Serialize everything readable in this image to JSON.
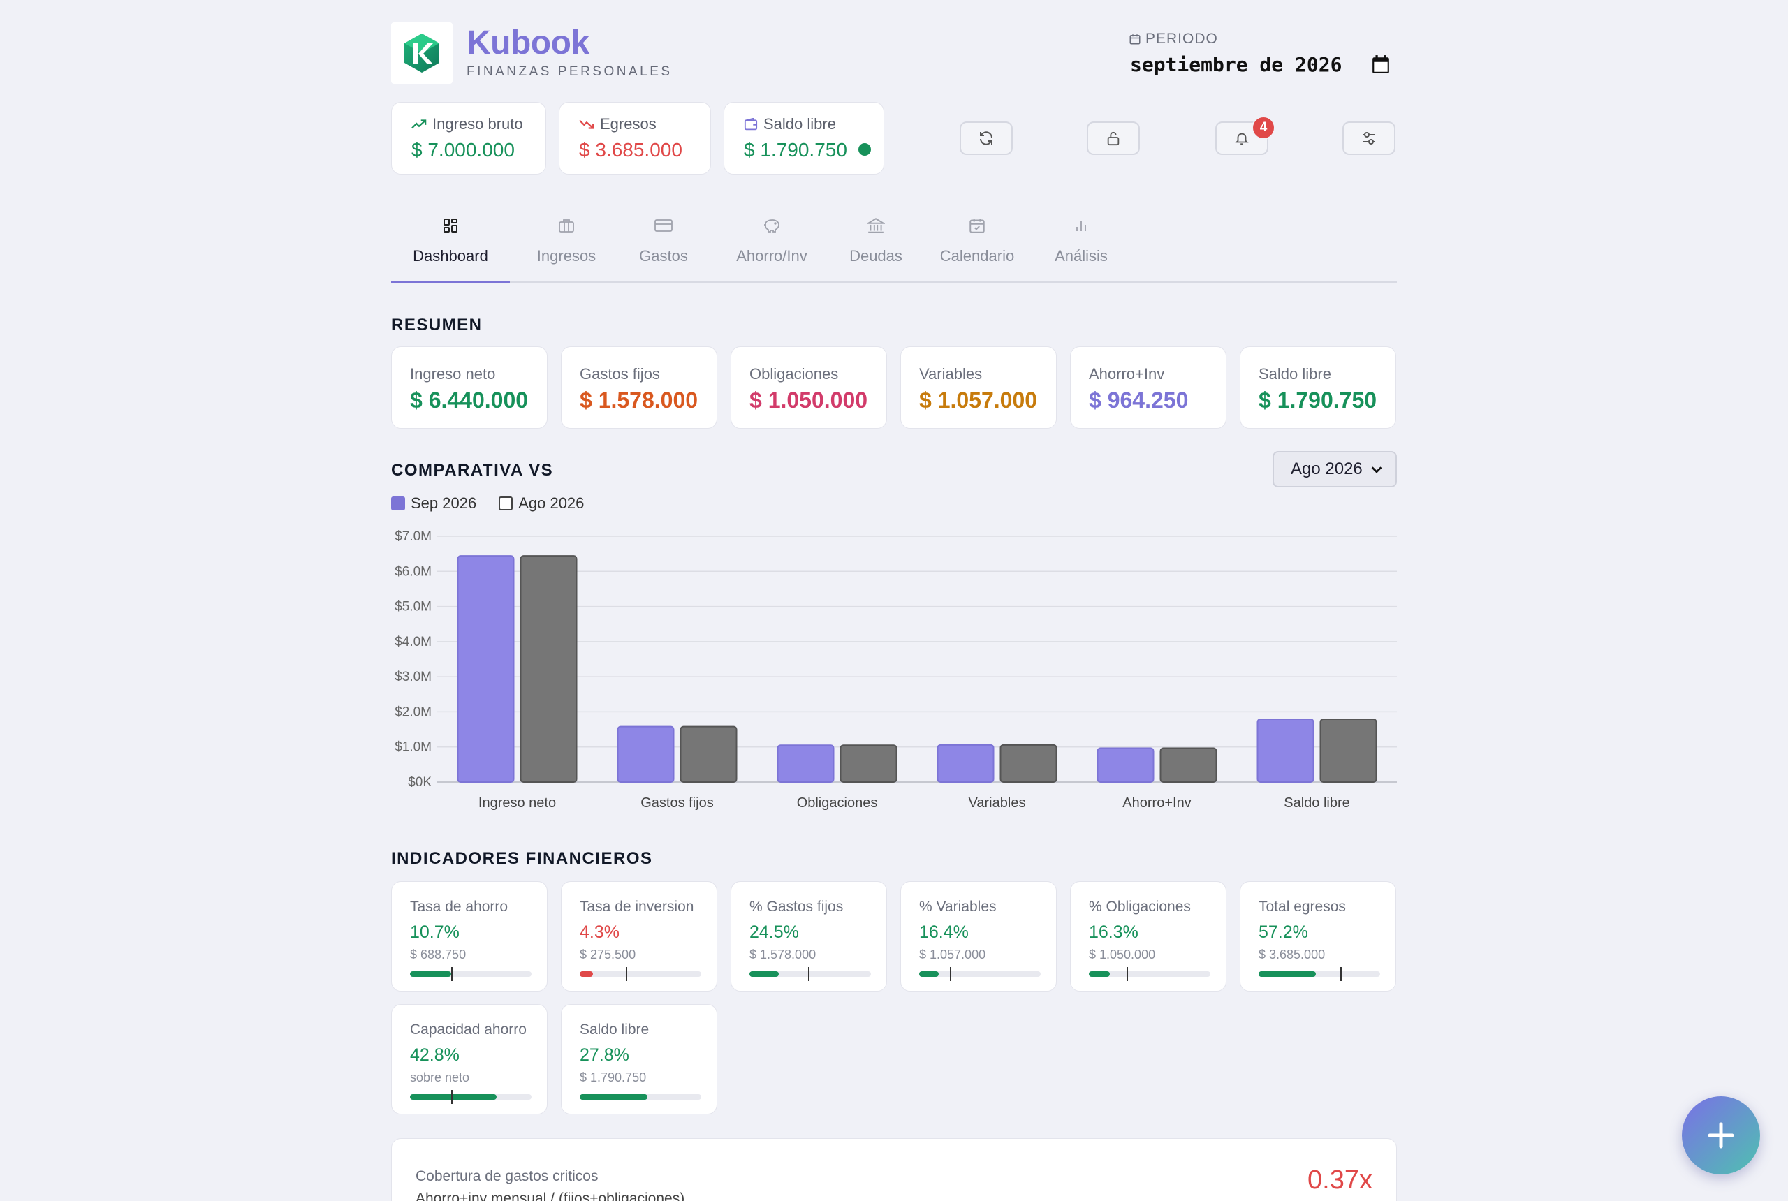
{
  "brand": {
    "name": "Kubook",
    "subtitle": "FINANZAS PERSONALES"
  },
  "periodo": {
    "label": "PERIODO",
    "value": "septiembre de 2026"
  },
  "top_stats": [
    {
      "label": "Ingreso bruto",
      "value": "$ 7.000.000",
      "color": "#17915a",
      "icon": "trending-up-icon"
    },
    {
      "label": "Egresos",
      "value": "$ 3.685.000",
      "color": "#e04848",
      "icon": "trending-down-icon"
    },
    {
      "label": "Saldo libre",
      "value": "$ 1.790.750",
      "color": "#17915a",
      "icon": "wallet-icon"
    }
  ],
  "toolbar": {
    "notifications_count": "4"
  },
  "tabs": [
    {
      "label": "Dashboard",
      "icon": "dashboard-icon"
    },
    {
      "label": "Ingresos",
      "icon": "briefcase-icon"
    },
    {
      "label": "Gastos",
      "icon": "credit-card-icon"
    },
    {
      "label": "Ahorro/Inv",
      "icon": "piggy-bank-icon"
    },
    {
      "label": "Deudas",
      "icon": "bank-icon"
    },
    {
      "label": "Calendario",
      "icon": "calendar-icon"
    },
    {
      "label": "Análisis",
      "icon": "bar-chart-icon"
    }
  ],
  "resumen": {
    "title": "RESUMEN",
    "cards": [
      {
        "label": "Ingreso neto",
        "value": "$ 6.440.000",
        "color": "#17915a"
      },
      {
        "label": "Gastos fijos",
        "value": "$ 1.578.000",
        "color": "#d9581f"
      },
      {
        "label": "Obligaciones",
        "value": "$ 1.050.000",
        "color": "#d23b6a"
      },
      {
        "label": "Variables",
        "value": "$ 1.057.000",
        "color": "#c77b0c"
      },
      {
        "label": "Ahorro+Inv",
        "value": "$ 964.250",
        "color": "#7c74d6"
      },
      {
        "label": "Saldo libre",
        "value": "$ 1.790.750",
        "color": "#17915a"
      }
    ]
  },
  "comparativa": {
    "title": "COMPARATIVA VS",
    "select_value": "Ago 2026",
    "legend": [
      {
        "name": "Sep 2026",
        "color": "#7c74d6",
        "checked": true
      },
      {
        "name": "Ago 2026",
        "color": "#666666",
        "checked": false
      }
    ]
  },
  "chart_data": {
    "type": "bar",
    "categories": [
      "Ingreso neto",
      "Gastos fijos",
      "Obligaciones",
      "Variables",
      "Ahorro+Inv",
      "Saldo libre"
    ],
    "series": [
      {
        "name": "Sep 2026",
        "values": [
          6440000,
          1578000,
          1050000,
          1057000,
          964250,
          1790750
        ],
        "color": "#8e86e6"
      },
      {
        "name": "Ago 2026",
        "values": [
          6440000,
          1578000,
          1050000,
          1057000,
          964250,
          1790750
        ],
        "color": "#767676"
      }
    ],
    "ylim": [
      0,
      7000000
    ],
    "yticks": [
      "$0K",
      "$1.0M",
      "$2.0M",
      "$3.0M",
      "$4.0M",
      "$5.0M",
      "$6.0M",
      "$7.0M"
    ],
    "grid": true
  },
  "indicadores": {
    "title": "INDICADORES FINANCIEROS",
    "cards": [
      {
        "label": "Tasa de ahorro",
        "pct": "10.7%",
        "sub": "$ 688.750",
        "color": "#17915a",
        "fill": 0.34,
        "target": 0.34
      },
      {
        "label": "Tasa de inversion",
        "pct": "4.3%",
        "sub": "$ 275.500",
        "color": "#e04848",
        "fill": 0.11,
        "target": 0.38
      },
      {
        "label": "% Gastos fijos",
        "pct": "24.5%",
        "sub": "$ 1.578.000",
        "color": "#17915a",
        "fill": 0.24,
        "target": 0.48
      },
      {
        "label": "% Variables",
        "pct": "16.4%",
        "sub": "$ 1.057.000",
        "color": "#17915a",
        "fill": 0.16,
        "target": 0.25
      },
      {
        "label": "% Obligaciones",
        "pct": "16.3%",
        "sub": "$ 1.050.000",
        "color": "#17915a",
        "fill": 0.17,
        "target": 0.31
      },
      {
        "label": "Total egresos",
        "pct": "57.2%",
        "sub": "$ 3.685.000",
        "color": "#17915a",
        "fill": 0.47,
        "target": 0.67
      },
      {
        "label": "Capacidad ahorro",
        "pct": "42.8%",
        "sub": "sobre neto",
        "color": "#17915a",
        "fill": 0.71,
        "target": 0.34
      },
      {
        "label": "Saldo libre",
        "pct": "27.8%",
        "sub": "$ 1.790.750",
        "color": "#17915a",
        "fill": 0.56,
        "target": null
      }
    ]
  },
  "cobertura": {
    "label": "Cobertura de gastos criticos",
    "sub": "Ahorro+inv mensual / (fijos+obligaciones)",
    "value": "0.37x"
  }
}
